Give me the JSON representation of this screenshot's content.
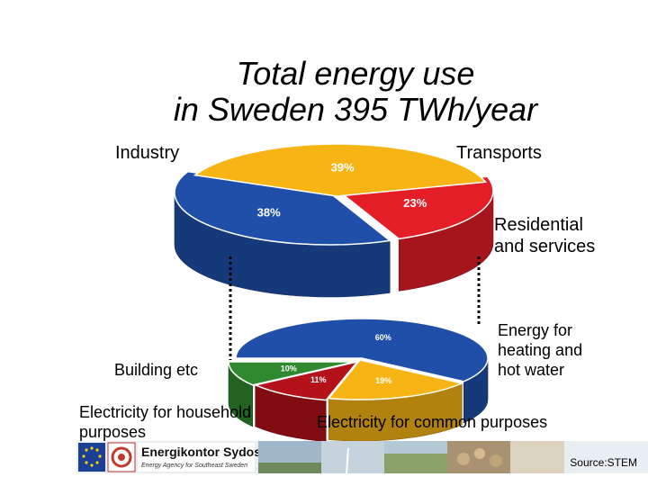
{
  "title": {
    "line1": "Total energy use",
    "line2": "in Sweden 395 TWh/year"
  },
  "chart_data": [
    {
      "type": "pie",
      "title": "Total energy use in Sweden 395 TWh/year",
      "categories": [
        "Industry",
        "Transports",
        "Residential and services"
      ],
      "values": [
        38,
        23,
        39
      ],
      "labels": [
        "38%",
        "23%",
        "39%"
      ],
      "colors": [
        "#1f4fa8",
        "#e41e26",
        "#f7b515"
      ]
    },
    {
      "type": "pie",
      "title": "Residential and services",
      "categories": [
        "Building etc",
        "Electricity for household purposes",
        "Electricity for common purposes",
        "Energy for heating and hot water"
      ],
      "values": [
        10,
        11,
        19,
        60
      ],
      "labels": [
        "10%",
        "11%",
        "19%",
        "60%"
      ],
      "colors": [
        "#2f8a2f",
        "#b3121b",
        "#f7b515",
        "#1f4fa8"
      ]
    }
  ],
  "labels": {
    "industry": "Industry",
    "transports": "Transports",
    "residential_l1": "Residential",
    "residential_l2": "and services",
    "building": "Building etc",
    "elec_house_l1": "Electricity for household",
    "elec_house_l2": "purposes",
    "heating_l1": "Energy for",
    "heating_l2": "heating and",
    "heating_l3": "hot water",
    "elec_common": "Electricity for common purposes"
  },
  "footer": {
    "org_name": "Energikontor Sydost",
    "org_tagline": "Energy Agency for Southeast Sweden",
    "source": "Source:STEM"
  }
}
